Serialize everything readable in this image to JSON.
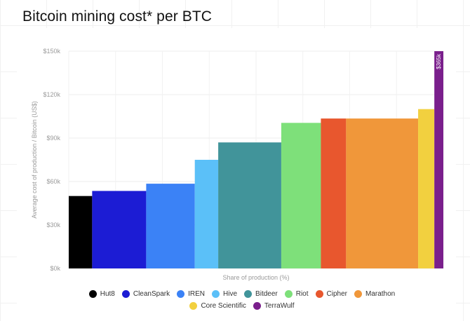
{
  "title": "Bitcoin mining cost* per BTC",
  "chart_data": {
    "type": "bar",
    "subtype": "variable-width (marimekko) bar",
    "xlabel": "Share of production (%)",
    "ylabel": "Average cost of production / Bitcoin (US$)",
    "ylim": [
      0,
      150000
    ],
    "yticks": [
      0,
      30000,
      60000,
      90000,
      120000,
      150000
    ],
    "ytick_labels": [
      "$0k",
      "$30k",
      "$60k",
      "$90k",
      "$120k",
      "$150k"
    ],
    "grid": true,
    "legend_position": "bottom",
    "series": [
      {
        "name": "Hut8",
        "value": 50000,
        "share": 6.5,
        "color": "#000000"
      },
      {
        "name": "CleanSpark",
        "value": 53500,
        "share": 15.0,
        "color": "#1C1CD4"
      },
      {
        "name": "IREN",
        "value": 58500,
        "share": 13.5,
        "color": "#3B82F6"
      },
      {
        "name": "Hive",
        "value": 75000,
        "share": 6.5,
        "color": "#5BC0F8"
      },
      {
        "name": "Bitdeer",
        "value": 87000,
        "share": 17.5,
        "color": "#41949A"
      },
      {
        "name": "Riot",
        "value": 100500,
        "share": 11.0,
        "color": "#7EE07A"
      },
      {
        "name": "Cipher",
        "value": 103500,
        "share": 7.0,
        "color": "#E8572E"
      },
      {
        "name": "Marathon",
        "value": 103500,
        "share": 20.0,
        "color": "#F0973A"
      },
      {
        "name": "Core Scientific",
        "value": 110000,
        "share": 4.5,
        "color": "#F2D03F"
      },
      {
        "name": "TerraWulf",
        "value": 365000,
        "share": 2.5,
        "color": "#7A1F8C",
        "label": "$365k"
      }
    ]
  }
}
